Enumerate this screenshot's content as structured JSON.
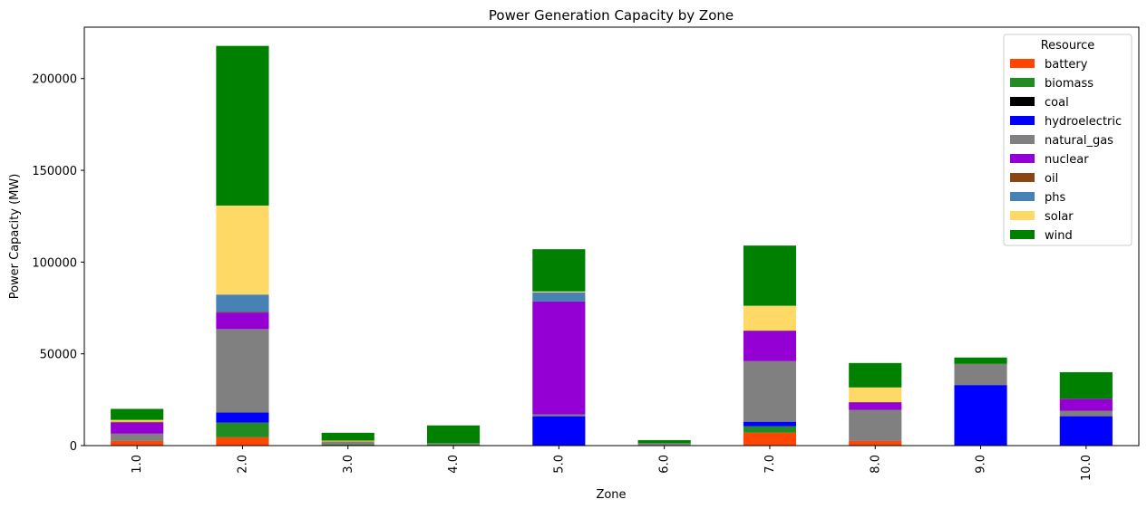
{
  "chart_data": {
    "type": "bar",
    "stacked": true,
    "title": "Power Generation Capacity by Zone",
    "xlabel": "Zone",
    "ylabel": "Power Capacity (MW)",
    "ylim": [
      0,
      228000
    ],
    "yticks": [
      0,
      50000,
      100000,
      150000,
      200000
    ],
    "categories": [
      "1.0",
      "2.0",
      "3.0",
      "4.0",
      "5.0",
      "6.0",
      "7.0",
      "8.0",
      "9.0",
      "10.0"
    ],
    "legend": {
      "title": "Resource",
      "position": "top-right"
    },
    "series": [
      {
        "name": "battery",
        "color": "#ff4500",
        "values": [
          2500,
          4500,
          0,
          0,
          0,
          0,
          7000,
          2500,
          0,
          0
        ]
      },
      {
        "name": "biomass",
        "color": "#228b22",
        "values": [
          0,
          8000,
          500,
          500,
          0,
          300,
          3500,
          0,
          0,
          0
        ]
      },
      {
        "name": "coal",
        "color": "#000000",
        "values": [
          0,
          0,
          0,
          0,
          0,
          0,
          0,
          0,
          0,
          0
        ]
      },
      {
        "name": "hydroelectric",
        "color": "#0000ff",
        "values": [
          0,
          5500,
          0,
          0,
          16000,
          0,
          2500,
          0,
          33000,
          16000
        ]
      },
      {
        "name": "natural_gas",
        "color": "#808080",
        "values": [
          4000,
          45500,
          1500,
          800,
          1000,
          1000,
          33000,
          17000,
          11500,
          3000
        ]
      },
      {
        "name": "nuclear",
        "color": "#9400d3",
        "values": [
          6000,
          9000,
          0,
          0,
          61500,
          0,
          16500,
          4000,
          0,
          6500
        ]
      },
      {
        "name": "oil",
        "color": "#8b4513",
        "values": [
          500,
          300,
          200,
          0,
          0,
          0,
          200,
          200,
          0,
          0
        ]
      },
      {
        "name": "phs",
        "color": "#4682b4",
        "values": [
          0,
          9500,
          0,
          0,
          5000,
          0,
          0,
          0,
          0,
          0
        ]
      },
      {
        "name": "solar",
        "color": "#ffd966",
        "values": [
          1000,
          48500,
          500,
          0,
          500,
          0,
          13500,
          8000,
          0,
          0
        ]
      },
      {
        "name": "wind",
        "color": "#008000",
        "values": [
          6000,
          87000,
          4300,
          9700,
          23000,
          1700,
          32800,
          13300,
          3500,
          14500
        ]
      }
    ]
  }
}
